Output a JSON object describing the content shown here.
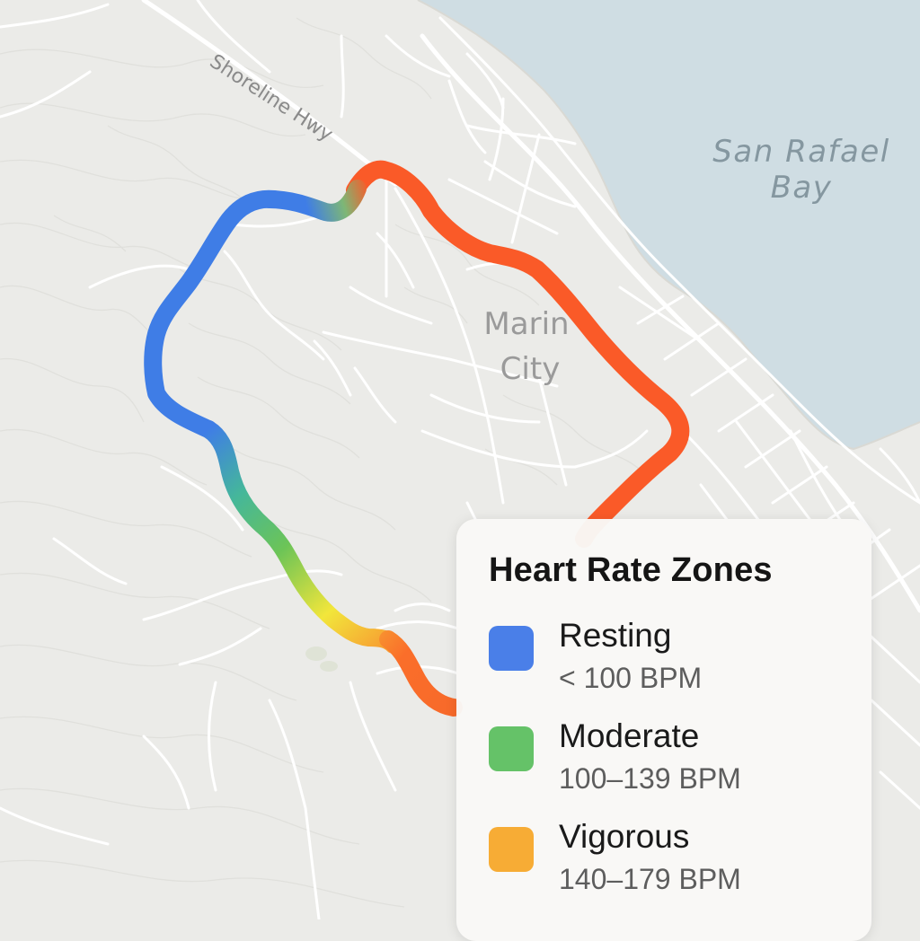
{
  "map": {
    "labels": {
      "road": "Shoreline Hwy",
      "water_line1": "San Rafael",
      "water_line2": "Bay",
      "town_line1": "Marin",
      "town_line2": "City"
    },
    "colors": {
      "land": "#ebebe8",
      "water": "#cfdde3",
      "road": "#ffffff",
      "contour": "#e1e1dd",
      "label": "#8a8a8a",
      "water_label": "#8597a0"
    }
  },
  "legend": {
    "title": "Heart Rate Zones",
    "zones": [
      {
        "name": "Resting",
        "range": "< 100 BPM",
        "color": "#4a7fe8"
      },
      {
        "name": "Moderate",
        "range": "100–139 BPM",
        "color": "#65c268"
      },
      {
        "name": "Vigorous",
        "range": "140–179 BPM",
        "color": "#f7ac35"
      }
    ]
  },
  "route": {
    "colors": {
      "resting": "#3f7de6",
      "moderate": "#55c07a",
      "light": "#9ad24a",
      "vigorous": "#f5e53a",
      "peak": "#fa5a28"
    }
  }
}
